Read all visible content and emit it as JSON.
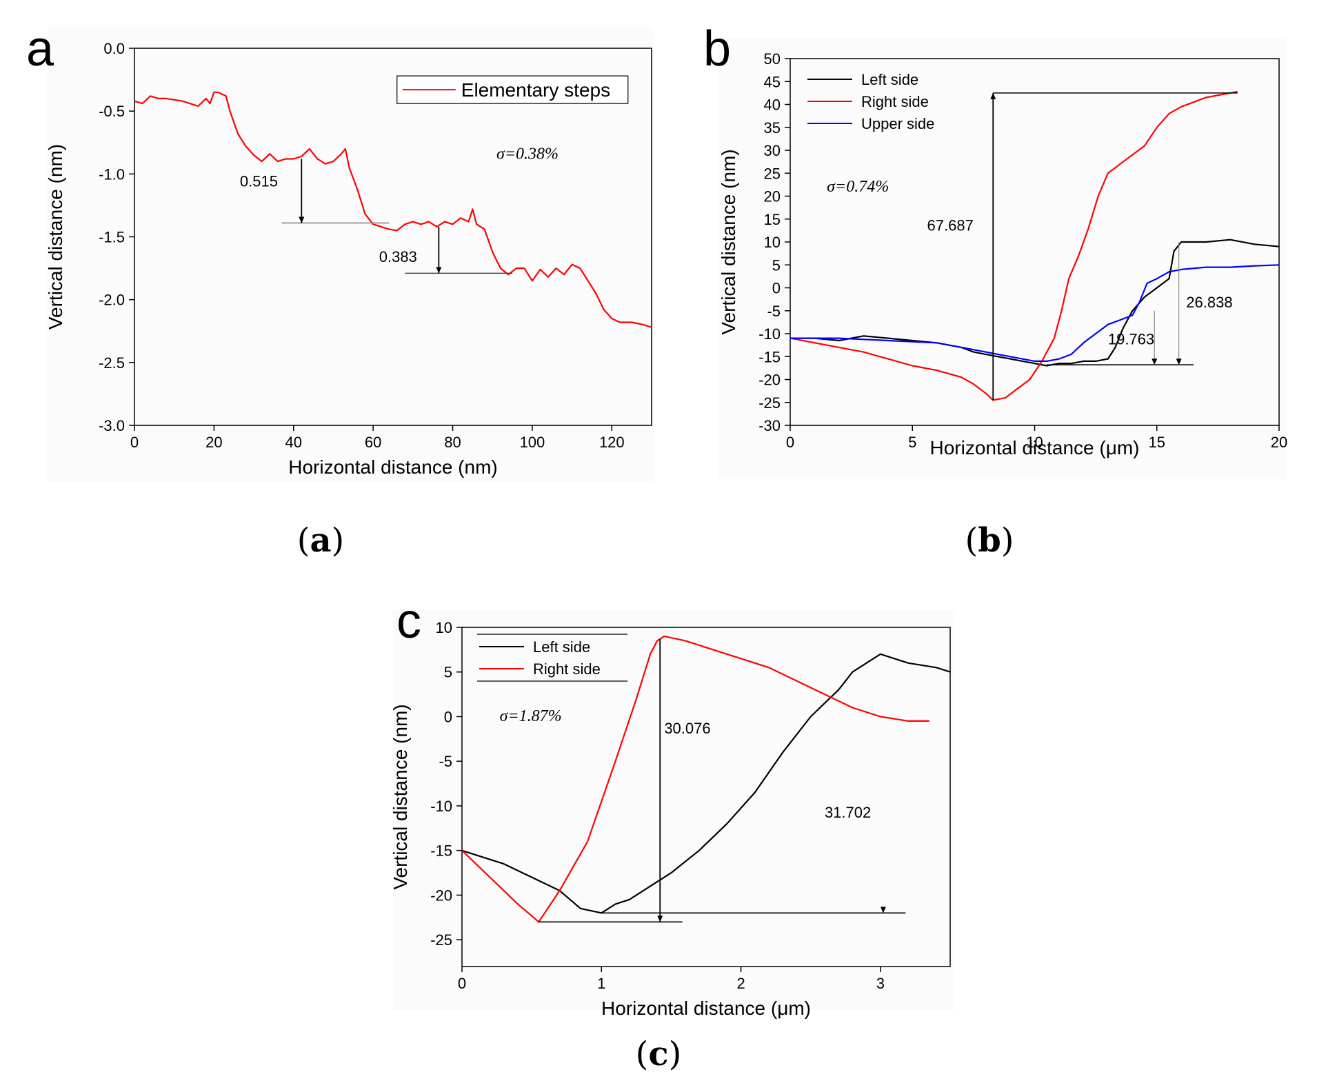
{
  "chart_data": [
    {
      "panel": "a",
      "caption": "a",
      "type": "line",
      "xlabel": "Horizontal distance (nm)",
      "ylabel": "Vertical distance (nm)",
      "xlim": [
        0,
        130
      ],
      "ylim": [
        -3.0,
        0.0
      ],
      "xticks": [
        0,
        20,
        40,
        60,
        80,
        100,
        120
      ],
      "yticks": [
        0.0,
        -0.5,
        -1.0,
        -1.5,
        -2.0,
        -2.5,
        -3.0
      ],
      "ytick_labels": [
        "0.0",
        "-0.5",
        "-1.0",
        "-1.5",
        "-2.0",
        "-2.5",
        "-3.0"
      ],
      "legend_position": "top-right",
      "sigma_text": "σ=0.38%",
      "annotations": [
        "0.515",
        "0.383"
      ],
      "series": [
        {
          "name": "Elementary steps",
          "color": "#ff0000",
          "x": [
            0,
            2,
            4,
            6,
            8,
            12,
            16,
            18,
            19,
            20,
            21,
            23,
            24,
            26,
            28,
            30,
            32,
            34,
            36,
            38,
            40,
            42,
            44,
            46,
            48,
            50,
            52,
            53,
            54,
            56,
            58,
            60,
            62,
            64,
            66,
            68,
            70,
            72,
            74,
            76,
            78,
            80,
            82,
            84,
            85,
            86,
            88,
            90,
            92,
            94,
            96,
            98,
            100,
            102,
            104,
            106,
            108,
            110,
            112,
            114,
            116,
            118,
            120,
            122,
            125,
            128,
            130
          ],
          "y": [
            -0.42,
            -0.44,
            -0.38,
            -0.4,
            -0.4,
            -0.42,
            -0.46,
            -0.4,
            -0.44,
            -0.35,
            -0.35,
            -0.38,
            -0.5,
            -0.68,
            -0.78,
            -0.85,
            -0.9,
            -0.84,
            -0.9,
            -0.88,
            -0.88,
            -0.86,
            -0.8,
            -0.88,
            -0.92,
            -0.9,
            -0.84,
            -0.8,
            -0.95,
            -1.12,
            -1.32,
            -1.4,
            -1.42,
            -1.44,
            -1.45,
            -1.4,
            -1.38,
            -1.4,
            -1.38,
            -1.42,
            -1.38,
            -1.4,
            -1.35,
            -1.38,
            -1.28,
            -1.4,
            -1.44,
            -1.62,
            -1.75,
            -1.8,
            -1.75,
            -1.75,
            -1.85,
            -1.76,
            -1.82,
            -1.75,
            -1.8,
            -1.72,
            -1.75,
            -1.85,
            -1.95,
            -2.08,
            -2.15,
            -2.18,
            -2.18,
            -2.2,
            -2.22
          ]
        }
      ]
    },
    {
      "panel": "b",
      "caption": "b",
      "type": "line",
      "xlabel": "Horizontal distance (μm)",
      "ylabel": "Vertical distance (nm)",
      "xlim": [
        0,
        20
      ],
      "ylim": [
        -30,
        50
      ],
      "xticks": [
        0,
        5,
        10,
        15,
        20
      ],
      "yticks": [
        50,
        45,
        40,
        35,
        30,
        25,
        20,
        15,
        10,
        5,
        0,
        -5,
        -10,
        -15,
        -20,
        -25,
        -30
      ],
      "legend_position": "top-left",
      "sigma_text": "σ=0.74%",
      "annotations": [
        "67.687",
        "26.838",
        "19.763"
      ],
      "series": [
        {
          "name": "Left side",
          "color": "#000000",
          "x": [
            0,
            1,
            2,
            3,
            4,
            5,
            6,
            7,
            7.5,
            8,
            8.5,
            9,
            9.5,
            10,
            10.5,
            11,
            11.5,
            12,
            12.5,
            13,
            13.3,
            13.6,
            14,
            14.5,
            15,
            15.5,
            15.7,
            16,
            17,
            18,
            19,
            20
          ],
          "y": [
            -11,
            -11,
            -11.5,
            -10.5,
            -11,
            -11.5,
            -12,
            -13,
            -14,
            -14.5,
            -15,
            -15.5,
            -16,
            -16.5,
            -17,
            -16.5,
            -16.5,
            -16,
            -16,
            -15.5,
            -13,
            -9,
            -5,
            -2,
            0,
            2,
            8,
            10,
            10,
            10.5,
            9.5,
            9
          ]
        },
        {
          "name": "Right side",
          "color": "#ff0000",
          "x": [
            0,
            1,
            2,
            3,
            4,
            5,
            6,
            7,
            7.5,
            8,
            8.3,
            8.8,
            9.3,
            9.8,
            10.3,
            10.8,
            11.1,
            11.4,
            11.8,
            12.2,
            12.6,
            13,
            13.5,
            14,
            14.5,
            15,
            15.5,
            16,
            16.5,
            17,
            17.5,
            18,
            18.3
          ],
          "y": [
            -11,
            -12,
            -13,
            -14,
            -15.5,
            -17,
            -18,
            -19.5,
            -21,
            -23,
            -24.5,
            -24,
            -22,
            -20,
            -16,
            -11,
            -5,
            2,
            7,
            13,
            20,
            25,
            27,
            29,
            31,
            35,
            38,
            39.5,
            40.5,
            41.5,
            42,
            42.5,
            42.8
          ]
        },
        {
          "name": "Upper side",
          "color": "#0000ff",
          "x": [
            0,
            2,
            4,
            6,
            7,
            8,
            9,
            10,
            10.5,
            11,
            11.5,
            12,
            12.5,
            13,
            13.5,
            14,
            14.3,
            14.6,
            15,
            15.5,
            16,
            17,
            18,
            19,
            20
          ],
          "y": [
            -11,
            -11,
            -11.5,
            -12,
            -13,
            -14,
            -15,
            -16,
            -16,
            -15.5,
            -14.5,
            -12,
            -10,
            -8,
            -7,
            -6,
            -3,
            1,
            2,
            3.5,
            4,
            4.5,
            4.5,
            4.8,
            5
          ]
        }
      ]
    },
    {
      "panel": "c",
      "caption": "c",
      "type": "line",
      "xlabel": "Horizontal distance (μm)",
      "ylabel": "Vertical distance (nm)",
      "xlim": [
        0,
        3.5
      ],
      "ylim": [
        -28,
        10
      ],
      "xticks": [
        0,
        1,
        2,
        3
      ],
      "yticks": [
        10,
        5,
        0,
        -5,
        -10,
        -15,
        -20,
        -25
      ],
      "legend_position": "top-left",
      "sigma_text": "σ=1.87%",
      "annotations": [
        "30.076",
        "31.702"
      ],
      "series": [
        {
          "name": "Left side",
          "color": "#000000",
          "x": [
            0,
            0.1,
            0.3,
            0.5,
            0.7,
            0.85,
            1.0,
            1.1,
            1.2,
            1.3,
            1.5,
            1.7,
            1.9,
            2.1,
            2.3,
            2.5,
            2.6,
            2.7,
            2.8,
            2.9,
            3.0,
            3.2,
            3.4,
            3.5
          ],
          "y": [
            -15,
            -15.5,
            -16.5,
            -18,
            -19.5,
            -21.5,
            -22,
            -21,
            -20.5,
            -19.5,
            -17.5,
            -15,
            -12,
            -8.5,
            -4,
            0,
            1.5,
            3,
            5,
            6,
            7,
            6,
            5.5,
            5
          ]
        },
        {
          "name": "Right side",
          "color": "#ff0000",
          "x": [
            0,
            0.2,
            0.4,
            0.55,
            0.7,
            0.9,
            1.1,
            1.25,
            1.35,
            1.4,
            1.45,
            1.6,
            1.8,
            2.0,
            2.2,
            2.4,
            2.6,
            2.8,
            3.0,
            3.2,
            3.35
          ],
          "y": [
            -15,
            -18,
            -21,
            -23,
            -19.5,
            -14,
            -5,
            2,
            7,
            8.5,
            9,
            8.5,
            7.5,
            6.5,
            5.5,
            4,
            2.5,
            1,
            0,
            -0.5,
            -0.5
          ]
        }
      ]
    }
  ]
}
